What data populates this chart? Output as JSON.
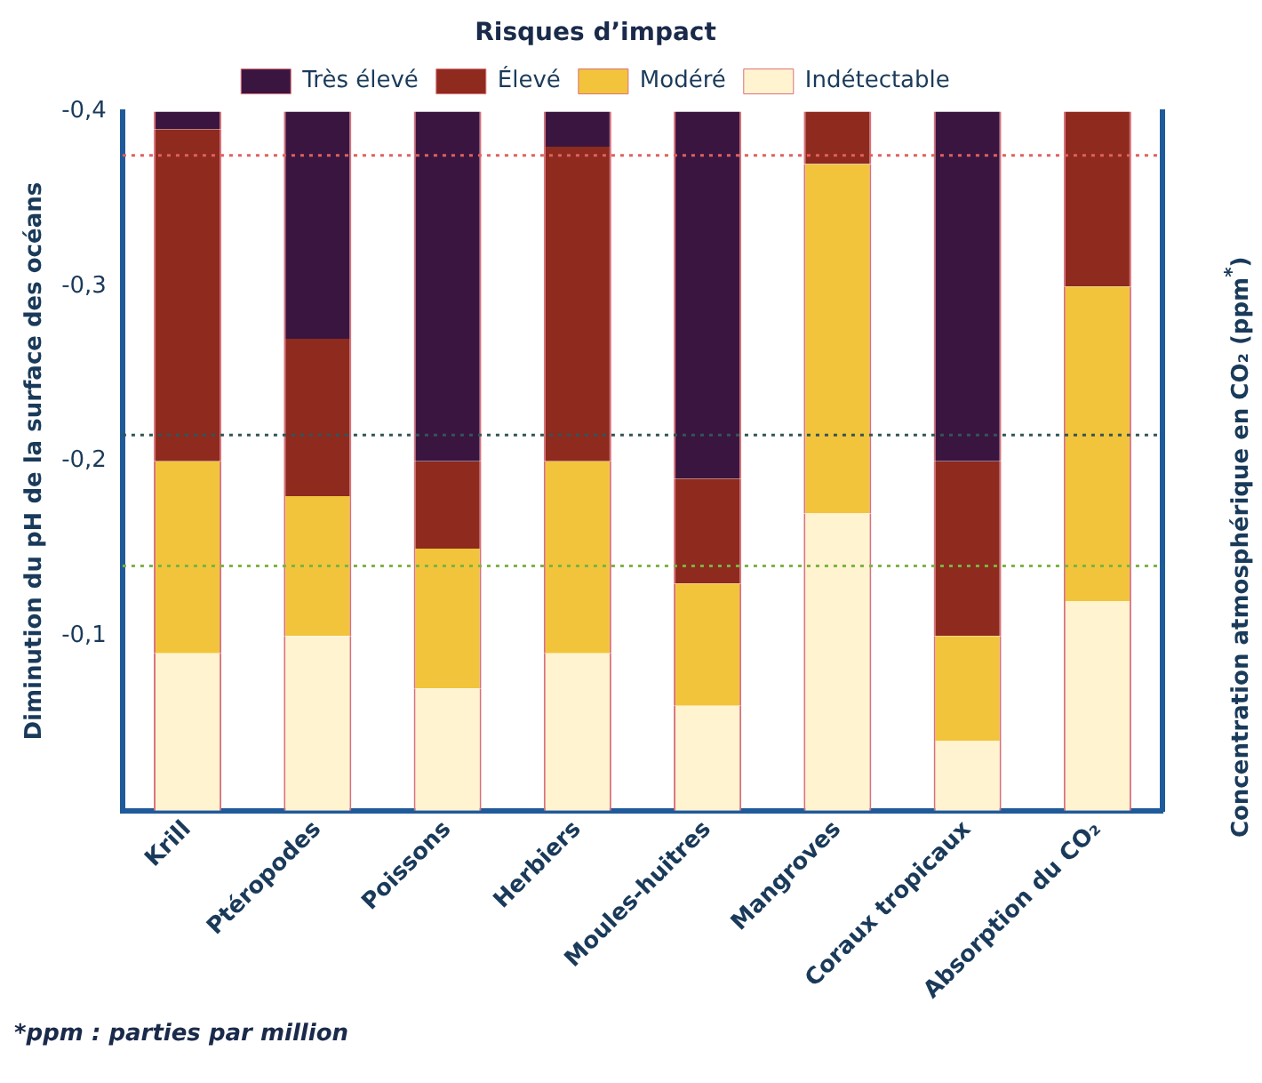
{
  "chart_data": {
    "type": "bar",
    "stacked": true,
    "legend": "top",
    "legend_title": "Risques d’impact",
    "ylabel": "Diminution du pH de la surface des océans",
    "y2label": "Concentration atmosphérique en CO₂ (ppm$^{*}$)",
    "categories": [
      "Krill",
      "Ptéropodes",
      "Poissons",
      "Herbiers",
      "Moules-huitres",
      "Mangroves",
      "Coraux tropicaux",
      "Absorption du CO₂"
    ],
    "series": [
      {
        "name": "Indétectable",
        "color": "#fff3d0",
        "values": [
          -0.09,
          -0.1,
          -0.07,
          -0.09,
          -0.06,
          -0.17,
          -0.04,
          -0.12
        ]
      },
      {
        "name": "Modéré",
        "color": "#f2c43c",
        "values": [
          -0.11,
          -0.08,
          -0.08,
          -0.11,
          -0.07,
          -0.2,
          -0.06,
          -0.18
        ]
      },
      {
        "name": "Élevé",
        "color": "#8e2a1e",
        "values": [
          -0.19,
          -0.09,
          -0.05,
          -0.18,
          -0.06,
          -0.03,
          -0.1,
          -0.1
        ]
      },
      {
        "name": "Très élevé",
        "color": "#3a1540",
        "values": [
          -0.01,
          -0.13,
          -0.2,
          -0.02,
          -0.21,
          0,
          -0.2,
          0
        ]
      }
    ],
    "ylim": [
      0,
      -0.4
    ],
    "yticks": [
      {
        "value": -0.1,
        "label": "-0,1"
      },
      {
        "value": -0.2,
        "label": "-0,2"
      },
      {
        "value": -0.3,
        "label": "-0,3"
      },
      {
        "value": -0.4,
        "label": "-0,4"
      }
    ],
    "grid": false,
    "ref_lines": [
      {
        "axis": "y",
        "value": -0.375,
        "color": "#e06060",
        "line_style": "dotted"
      },
      {
        "axis": "y",
        "value": -0.215,
        "color": "#335555",
        "line_style": "dotted"
      },
      {
        "axis": "y",
        "value": -0.14,
        "color": "#7cb342",
        "line_style": "dotted"
      }
    ],
    "annotations": [
      "*ppm : parties par million"
    ]
  }
}
